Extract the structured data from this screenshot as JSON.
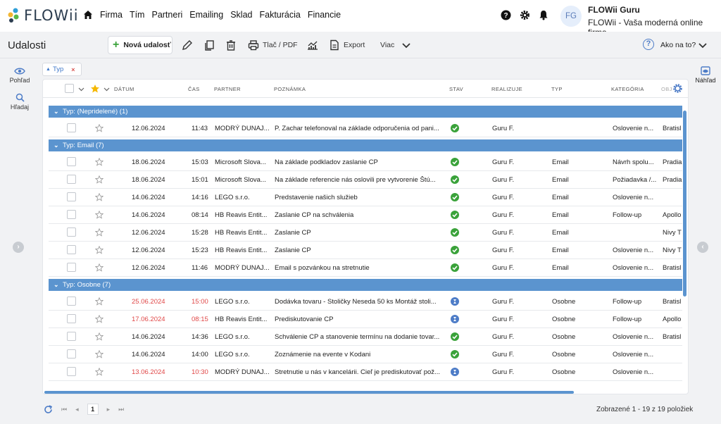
{
  "app": {
    "logo_text": "FLOWii"
  },
  "nav": {
    "items": [
      "Firma",
      "Tím",
      "Partneri",
      "Emailing",
      "Sklad",
      "Fakturácia",
      "Financie"
    ]
  },
  "user": {
    "initials": "FG",
    "name": "FLOWii Guru",
    "subtitle": "FLOWii - Vaša moderná online firma"
  },
  "toolbar": {
    "title": "Udalosti",
    "new_label": "Nová udalosť",
    "print_label": "Tlač / PDF",
    "export_label": "Export",
    "more_label": "Viac",
    "help_label": "Ako na to?"
  },
  "side": {
    "view_label": "Pohľad",
    "search_label": "Hľadaj",
    "preview_label": "Náhľad"
  },
  "filter_chip": {
    "label": "Typ",
    "remove": "×"
  },
  "columns": [
    "DÁTUM",
    "ČAS",
    "PARTNER",
    "POZNÁMKA",
    "STAV",
    "REALIZUJE",
    "TYP",
    "KATEGÓRIA",
    "OBJ"
  ],
  "groups": [
    {
      "title": "Typ: (Nepridelené) (1)"
    },
    {
      "title": "Typ: Email (7)"
    },
    {
      "title": "Typ: Osobne (7)"
    }
  ],
  "rows": [
    {
      "date": "12.06.2024",
      "time": "11:43",
      "partner": "MODRÝ DUNAJ...",
      "note": "P. Zachar telefonoval na základe odporučenia od pani...",
      "status": "done",
      "by": "Guru F.",
      "type": "",
      "category": "Oslovenie n...",
      "place": "Bratisl",
      "overdue": false
    },
    {
      "date": "18.06.2024",
      "time": "15:03",
      "partner": "Microsoft Slova...",
      "note": "Na základe podkladov zaslanie CP",
      "status": "done",
      "by": "Guru F.",
      "type": "Email",
      "category": "Návrh spolu...",
      "place": "Pradia",
      "overdue": false
    },
    {
      "date": "18.06.2024",
      "time": "15:01",
      "partner": "Microsoft Slova...",
      "note": "Na základe referencie nás oslovili pre vytvorenie Štú...",
      "status": "done",
      "by": "Guru F.",
      "type": "Email",
      "category": "Požiadavka /...",
      "place": "Pradia",
      "overdue": false
    },
    {
      "date": "14.06.2024",
      "time": "14:16",
      "partner": "LEGO s.r.o.",
      "note": "Predstavenie našich služieb",
      "status": "done",
      "by": "Guru F.",
      "type": "Email",
      "category": "Oslovenie n...",
      "place": "",
      "overdue": false
    },
    {
      "date": "14.06.2024",
      "time": "08:14",
      "partner": "HB Reavis Entit...",
      "note": "Zaslanie CP na schválenia",
      "status": "done",
      "by": "Guru F.",
      "type": "Email",
      "category": "Follow-up",
      "place": "Apollo",
      "overdue": false
    },
    {
      "date": "12.06.2024",
      "time": "15:28",
      "partner": "HB Reavis Entit...",
      "note": "Zaslanie CP",
      "status": "done",
      "by": "Guru F.",
      "type": "Email",
      "category": "",
      "place": "Nivy T",
      "overdue": false
    },
    {
      "date": "12.06.2024",
      "time": "15:23",
      "partner": "HB Reavis Entit...",
      "note": "Zaslanie CP",
      "status": "done",
      "by": "Guru F.",
      "type": "Email",
      "category": "Oslovenie n...",
      "place": "Nivy T",
      "overdue": false
    },
    {
      "date": "12.06.2024",
      "time": "11:46",
      "partner": "MODRÝ DUNAJ...",
      "note": "Email s pozvánkou na stretnutie",
      "status": "done",
      "by": "Guru F.",
      "type": "Email",
      "category": "Oslovenie n...",
      "place": "Bratisl",
      "overdue": false
    },
    {
      "date": "25.06.2024",
      "time": "15:00",
      "partner": "LEGO s.r.o.",
      "note": "Dodávka tovaru - Stoličky Neseda 50 ks Montáž stoli...",
      "status": "pending",
      "by": "Guru F.",
      "type": "Osobne",
      "category": "Follow-up",
      "place": "Bratisl",
      "overdue": true
    },
    {
      "date": "17.06.2024",
      "time": "08:15",
      "partner": "HB Reavis Entit...",
      "note": "Prediskutovanie CP",
      "status": "pending",
      "by": "Guru F.",
      "type": "Osobne",
      "category": "Follow-up",
      "place": "Apollo",
      "overdue": true
    },
    {
      "date": "14.06.2024",
      "time": "14:36",
      "partner": "LEGO s.r.o.",
      "note": "Schválenie CP a stanovenie termínu na dodanie tovar...",
      "status": "done",
      "by": "Guru F.",
      "type": "Osobne",
      "category": "Oslovenie n...",
      "place": "Bratisl",
      "overdue": false
    },
    {
      "date": "14.06.2024",
      "time": "14:00",
      "partner": "LEGO s.r.o.",
      "note": "Zoznámenie na evente v Kodani",
      "status": "done",
      "by": "Guru F.",
      "type": "Osobne",
      "category": "Oslovenie n...",
      "place": "",
      "overdue": false
    },
    {
      "date": "13.06.2024",
      "time": "10:30",
      "partner": "MODRÝ DUNAJ...",
      "note": "Stretnutie u nás v kancelárii. Cieľ je prediskutovať pož...",
      "status": "pending",
      "by": "Guru F.",
      "type": "Osobne",
      "category": "Oslovenie n...",
      "place": "",
      "overdue": true
    }
  ],
  "pager": {
    "current_page": "1",
    "summary": "Zobrazené 1 - 19 z 19 položiek"
  },
  "colors": {
    "accent": "#5b94cf",
    "ok": "#3aa23a",
    "pending": "#4d7cc7",
    "overdue": "#e04848"
  }
}
